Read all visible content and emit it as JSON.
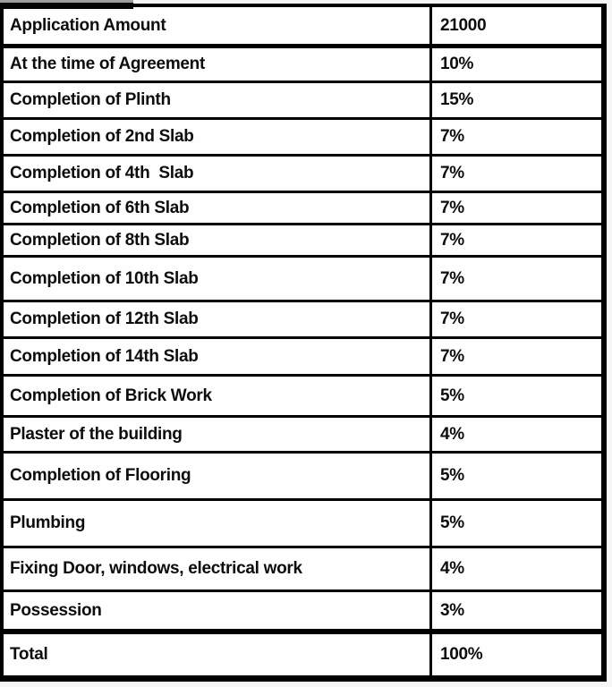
{
  "table": {
    "title": "payment-schedule",
    "columns": [
      "stage",
      "value"
    ],
    "rows": [
      {
        "label": "Application Amount",
        "value": "21000"
      },
      {
        "label": "At the time of Agreement",
        "value": "10%"
      },
      {
        "label": "Completion of Plinth",
        "value": "15%"
      },
      {
        "label": "Completion of 2nd Slab",
        "value": "7%"
      },
      {
        "label": "Completion of 4th  Slab",
        "value": "7%"
      },
      {
        "label": "Completion of 6th Slab",
        "value": "7%"
      },
      {
        "label": "Completion of 8th Slab",
        "value": "7%"
      },
      {
        "label": "Completion of 10th Slab",
        "value": "7%"
      },
      {
        "label": "Completion of 12th Slab",
        "value": "7%"
      },
      {
        "label": "Completion of 14th Slab",
        "value": "7%"
      },
      {
        "label": "Completion of Brick Work",
        "value": "5%"
      },
      {
        "label": "Plaster of the building",
        "value": "4%"
      },
      {
        "label": "Completion of Flooring",
        "value": "5%"
      },
      {
        "label": "Plumbing",
        "value": "5%"
      },
      {
        "label": "Fixing Door, windows, electrical work",
        "value": "4%"
      },
      {
        "label": "Possession",
        "value": "3%"
      },
      {
        "label": "Total",
        "value": "100%"
      }
    ],
    "colors": {
      "border": "#000000",
      "cell_background": "#fefefe",
      "text": "#0d0d0d",
      "fragment_bar": "#050505",
      "fragment_edge": "#9e9e9e"
    }
  }
}
